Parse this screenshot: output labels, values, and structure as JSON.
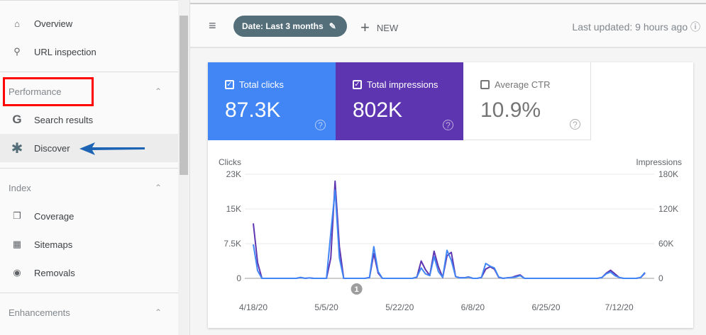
{
  "sidebar": {
    "overview": "Overview",
    "url_inspection": "URL inspection",
    "performance": {
      "label": "Performance",
      "items": [
        "Search results",
        "Discover"
      ]
    },
    "index": {
      "label": "Index",
      "items": [
        "Coverage",
        "Sitemaps",
        "Removals"
      ]
    },
    "enhancements": {
      "label": "Enhancements"
    }
  },
  "toolbar": {
    "date_chip": "Date: Last 3 months",
    "new": "NEW",
    "last_updated": "Last updated: 9 hours ago"
  },
  "metrics": [
    {
      "label": "Total clicks",
      "value": "87.3K",
      "checked": true,
      "color": "#4285f4"
    },
    {
      "label": "Total impressions",
      "value": "802K",
      "checked": true,
      "color": "#5e35b1"
    },
    {
      "label": "Average CTR",
      "value": "10.9%",
      "checked": false
    }
  ],
  "chart_data": {
    "type": "line",
    "start_date": "4/18/20",
    "left_axis_label": "Clicks",
    "right_axis_label": "Impressions",
    "left_ticks": [
      "0",
      "7.5K",
      "15K",
      "23K"
    ],
    "left_ylim": [
      0,
      23000
    ],
    "right_ticks": [
      "0",
      "60K",
      "120K",
      "180K"
    ],
    "right_ylim": [
      0,
      180000
    ],
    "x_tick_labels": [
      "4/18/20",
      "5/5/20",
      "5/22/20",
      "6/8/20",
      "6/25/20",
      "7/12/20"
    ],
    "x_tick_days": [
      0,
      17,
      34,
      51,
      68,
      85
    ],
    "annotation": {
      "label": "1",
      "day": 24
    },
    "series": [
      {
        "name": "Clicks",
        "axis": "left",
        "color": "#4285f4",
        "values": [
          7500,
          1700,
          0,
          0,
          0,
          0,
          0,
          0,
          0,
          0,
          0,
          200,
          0,
          100,
          0,
          0,
          0,
          0,
          10000,
          19500,
          4500,
          0,
          0,
          0,
          0,
          0,
          0,
          200,
          7000,
          1500,
          0,
          0,
          0,
          0,
          0,
          0,
          0,
          0,
          300,
          2300,
          1000,
          600,
          4800,
          1500,
          200,
          6200,
          4000,
          400,
          100,
          100,
          300,
          0,
          0,
          200,
          3300,
          2700,
          2300,
          300,
          0,
          100,
          200,
          300,
          600,
          0,
          0,
          0,
          0,
          0,
          0,
          0,
          0,
          0,
          0,
          0,
          0,
          0,
          0,
          0,
          0,
          0,
          0,
          200,
          1000,
          1400,
          600,
          200,
          0,
          0,
          0,
          0,
          200,
          1300
        ]
      },
      {
        "name": "Impressions",
        "axis": "right",
        "color": "#5e35b1",
        "values": [
          95000,
          27000,
          0,
          0,
          0,
          0,
          0,
          0,
          0,
          0,
          0,
          1500,
          0,
          800,
          0,
          0,
          0,
          0,
          35000,
          168000,
          55000,
          0,
          0,
          0,
          0,
          0,
          0,
          1500,
          43000,
          9000,
          0,
          0,
          0,
          0,
          0,
          0,
          0,
          0,
          2000,
          30000,
          15000,
          5000,
          47000,
          20000,
          1500,
          39000,
          45000,
          3000,
          1000,
          1000,
          2500,
          0,
          0,
          1500,
          16000,
          20000,
          16000,
          2000,
          0,
          1000,
          1500,
          4000,
          6000,
          0,
          0,
          0,
          0,
          0,
          0,
          0,
          0,
          0,
          0,
          0,
          0,
          0,
          0,
          0,
          0,
          0,
          0,
          1500,
          9000,
          14000,
          8000,
          1500,
          0,
          0,
          0,
          0,
          1500,
          9000
        ]
      }
    ]
  }
}
